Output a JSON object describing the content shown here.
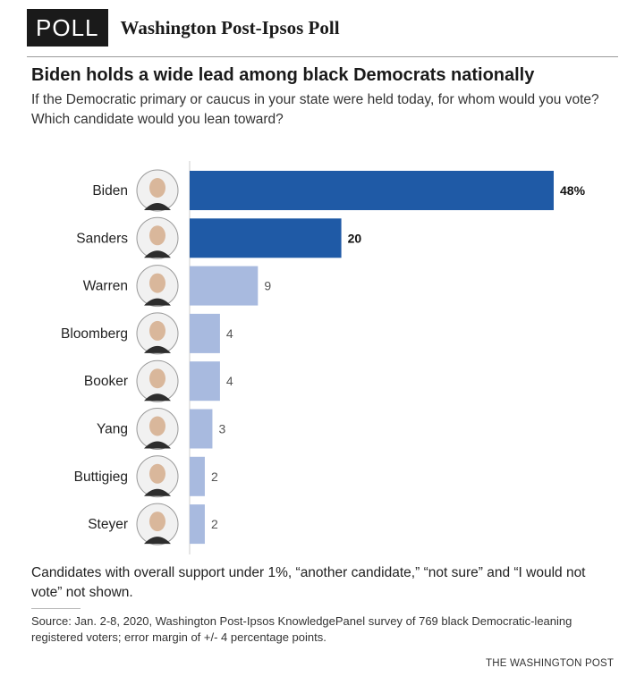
{
  "header": {
    "badge": "POLL",
    "source_title": "Washington Post-Ipsos Poll"
  },
  "headline": "Biden holds a wide lead among black Democrats nationally",
  "subhead": "If the Democratic primary or caucus in your state were held today, for whom would you vote? Which candidate would you lean toward?",
  "colors": {
    "leader_bar": "#1f5aa6",
    "other_bar": "#a8badf",
    "axis_line": "#cccccc"
  },
  "chart_data": {
    "type": "bar",
    "orientation": "horizontal",
    "categories": [
      "Biden",
      "Sanders",
      "Warren",
      "Bloomberg",
      "Booker",
      "Yang",
      "Buttigieg",
      "Steyer"
    ],
    "values": [
      48,
      20,
      9,
      4,
      4,
      3,
      2,
      2
    ],
    "value_labels": [
      "48%",
      "20",
      "9",
      "4",
      "4",
      "3",
      "2",
      "2"
    ],
    "highlighted": [
      true,
      true,
      false,
      false,
      false,
      false,
      false,
      false
    ],
    "xlim": [
      0,
      48
    ],
    "unit": "%",
    "icons": [
      "biden-portrait-icon",
      "sanders-portrait-icon",
      "warren-portrait-icon",
      "bloomberg-portrait-icon",
      "booker-portrait-icon",
      "yang-portrait-icon",
      "buttigieg-portrait-icon",
      "steyer-portrait-icon"
    ]
  },
  "note": "Candidates with overall support under 1%, “another candidate,” “not sure” and “I would not vote” not shown.",
  "source": "Source: Jan. 2-8, 2020, Washington Post-Ipsos KnowledgePanel survey of 769 black Democratic-leaning registered voters; error margin of +/- 4 percentage points.",
  "credit": "THE WASHINGTON POST"
}
